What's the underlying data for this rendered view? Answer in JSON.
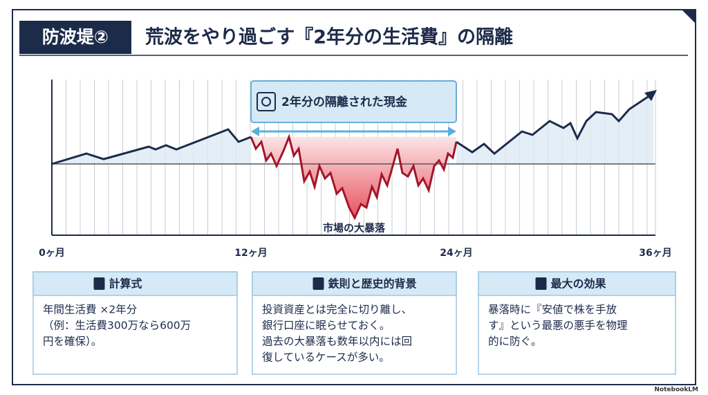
{
  "header": {
    "badge": "防波堤②",
    "title": "荒波をやり過ごす『2年分の生活費』の隔離"
  },
  "illustration": {
    "callout": "2年分の隔離された現金",
    "crash_label": "市場の大暴落",
    "axis_labels": [
      "0ヶ月",
      "12ヶ月",
      "24ヶ月",
      "36ヶ月"
    ]
  },
  "cards": [
    {
      "title": "計算式",
      "lines": [
        "年間生活費 ×2年分",
        "（例：生活費300万なら600万",
        "円を確保）。"
      ]
    },
    {
      "title": "鉄則と歴史的背景",
      "lines": [
        "投資資産とは完全に切り離し、",
        "銀行口座に眠らせておく。",
        "過去の大暴落も数年以内には回",
        "復しているケースが多い。"
      ]
    },
    {
      "title": "最大の効果",
      "lines": [
        "暴落時に『安値で株を手放",
        "す』という最悪の悪手を物理",
        "的に防ぐ。"
      ]
    }
  ],
  "footer": {
    "brand": "NotebookLM"
  }
}
